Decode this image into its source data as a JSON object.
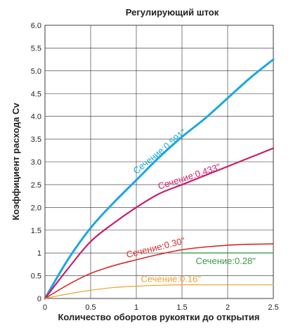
{
  "chart_data": {
    "type": "line",
    "title": "Регулирующий шток",
    "xlabel": "Количество оборотов рукоятки до открытия",
    "ylabel": "Коэффициент расхода Cv",
    "xlim": [
      0,
      2.5
    ],
    "ylim": [
      0,
      6.0
    ],
    "x_ticks": [
      "0",
      "0.5",
      "1",
      "1.5",
      "2",
      "2.5"
    ],
    "y_ticks": [
      "0",
      "0.5",
      "1",
      "1.5",
      "2.0",
      "2.5",
      "3.0",
      "3.5",
      "4.0",
      "4.5",
      "5.0",
      "5.5",
      "6.0"
    ],
    "grid": true,
    "series": [
      {
        "name": "Сечение:0.591\"",
        "color": "#1aa7e0",
        "x": [
          0,
          0.25,
          0.5,
          0.75,
          1.0,
          1.25,
          1.5,
          1.75,
          2.0,
          2.25,
          2.5
        ],
        "y": [
          0,
          0.85,
          1.55,
          2.1,
          2.6,
          3.1,
          3.55,
          3.95,
          4.4,
          4.85,
          5.25
        ]
      },
      {
        "name": "Сечение:0.433\"",
        "color": "#c81e6e",
        "x": [
          0,
          0.25,
          0.5,
          0.75,
          1.0,
          1.25,
          1.5,
          1.75,
          2.0,
          2.25,
          2.5
        ],
        "y": [
          0,
          0.65,
          1.25,
          1.65,
          2.0,
          2.3,
          2.5,
          2.7,
          2.9,
          3.1,
          3.3
        ]
      },
      {
        "name": "Сечение:0.30\"",
        "color": "#d42a2a",
        "x": [
          0,
          0.25,
          0.5,
          0.75,
          1.0,
          1.25,
          1.5,
          1.75,
          2.0,
          2.25,
          2.5
        ],
        "y": [
          0,
          0.3,
          0.55,
          0.72,
          0.85,
          0.97,
          1.07,
          1.13,
          1.17,
          1.19,
          1.2
        ]
      },
      {
        "name": "Сечение:0.28\"",
        "color": "#3a9a4e",
        "x": [
          1.5,
          1.6,
          1.75,
          2.0,
          2.25,
          2.5
        ],
        "y": [
          1.0,
          1.0,
          1.0,
          1.0,
          1.0,
          1.0
        ]
      },
      {
        "name": "Сечение:0.16\"",
        "color": "#f0a030",
        "x": [
          0,
          0.25,
          0.5,
          0.75,
          1.0,
          1.25,
          1.5,
          1.75,
          2.0,
          2.25,
          2.5
        ],
        "y": [
          0,
          0.1,
          0.18,
          0.24,
          0.27,
          0.29,
          0.3,
          0.3,
          0.3,
          0.3,
          0.3
        ]
      }
    ]
  }
}
